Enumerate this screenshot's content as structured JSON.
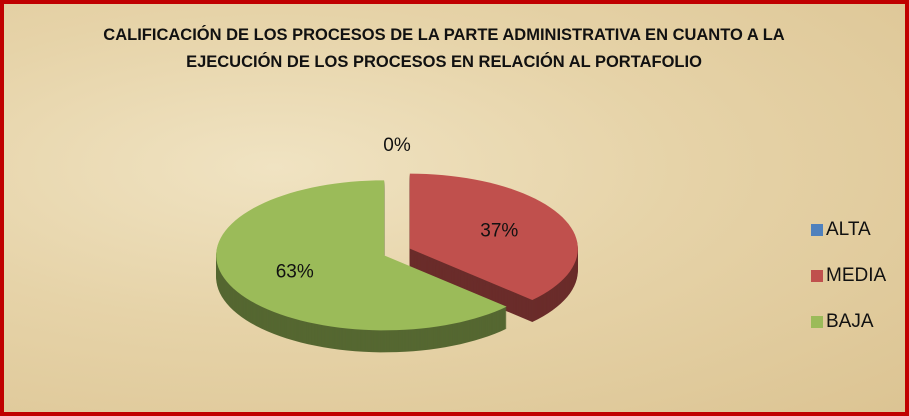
{
  "chart_data": {
    "type": "pie3d",
    "title": "CALIFICACIÓN DE LOS PROCESOS DE LA PARTE ADMINISTRATIVA EN CUANTO A LA EJECUCIÓN DE LOS PROCESOS EN RELACIÓN AL PORTAFOLIO",
    "categories": [
      "ALTA",
      "MEDIA",
      "BAJA"
    ],
    "values": [
      0,
      37,
      63
    ],
    "value_labels": [
      "0%",
      "37%",
      "63%"
    ],
    "colors": [
      "#4f81bd",
      "#c0504d",
      "#9bbb59"
    ],
    "legend": "right"
  }
}
